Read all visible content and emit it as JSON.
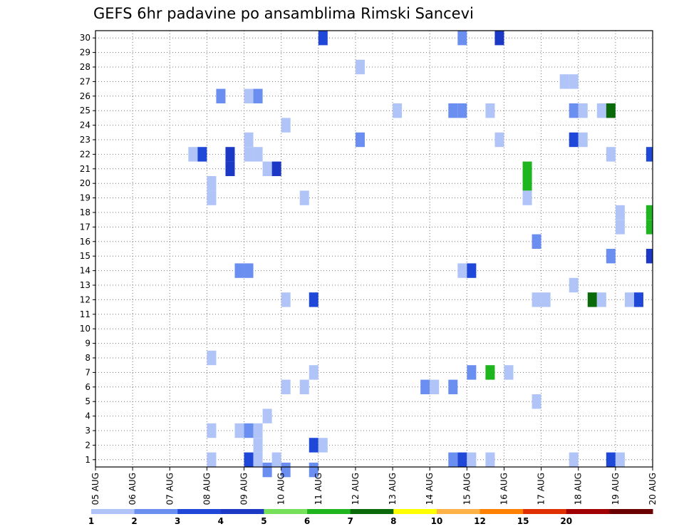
{
  "chart_data": {
    "type": "heatmap",
    "title": "GEFS 6hr padavine po ansamblima Rimski Sancevi",
    "x_labels": [
      "05 AUG",
      "06 AUG",
      "07 AUG",
      "08 AUG",
      "09 AUG",
      "10 AUG",
      "11 AUG",
      "12 AUG",
      "13 AUG",
      "14 AUG",
      "15 AUG",
      "16 AUG",
      "17 AUG",
      "18 AUG",
      "19 AUG",
      "20 AUG"
    ],
    "y_labels": [
      "1",
      "2",
      "3",
      "4",
      "5",
      "6",
      "7",
      "8",
      "9",
      "10",
      "11",
      "12",
      "13",
      "14",
      "15",
      "16",
      "17",
      "18",
      "19",
      "20",
      "21",
      "22",
      "23",
      "24",
      "25",
      "26",
      "27",
      "28",
      "29",
      "30"
    ],
    "x_range": [
      0,
      60
    ],
    "y_range": [
      0.5,
      30.5
    ],
    "grid": true,
    "colorbar": {
      "levels": [
        "1",
        "2",
        "3",
        "4",
        "5",
        "6",
        "7",
        "8",
        "10",
        "12",
        "15",
        "20"
      ],
      "colors": [
        "#b0c4f8",
        "#6b8ff0",
        "#1f48d8",
        "#1c39c6",
        "#76e05a",
        "#1fb51f",
        "#0a6a0a",
        "#ffff00",
        "#ffb347",
        "#ff7f00",
        "#e03000",
        "#a00000",
        "#6a0000"
      ]
    },
    "cells": [
      {
        "t": 24.5,
        "m": 30,
        "c": 3
      },
      {
        "t": 39.5,
        "m": 30,
        "c": 2
      },
      {
        "t": 43.5,
        "m": 30,
        "c": 4
      },
      {
        "t": 28.5,
        "m": 28,
        "c": 1
      },
      {
        "t": 50.5,
        "m": 27,
        "c": 1
      },
      {
        "t": 51.5,
        "m": 27,
        "c": 1
      },
      {
        "t": 13.5,
        "m": 26,
        "c": 2
      },
      {
        "t": 16.5,
        "m": 26,
        "c": 1
      },
      {
        "t": 17.5,
        "m": 26,
        "c": 2
      },
      {
        "t": 32.5,
        "m": 25,
        "c": 1
      },
      {
        "t": 38.5,
        "m": 25,
        "c": 2
      },
      {
        "t": 39.5,
        "m": 25,
        "c": 2
      },
      {
        "t": 42.5,
        "m": 25,
        "c": 1
      },
      {
        "t": 51.5,
        "m": 25,
        "c": 2
      },
      {
        "t": 52.5,
        "m": 25,
        "c": 1
      },
      {
        "t": 54.5,
        "m": 25,
        "c": 1
      },
      {
        "t": 55.5,
        "m": 25,
        "c": 7
      },
      {
        "t": 20.5,
        "m": 24,
        "c": 1
      },
      {
        "t": 16.5,
        "m": 23,
        "c": 1
      },
      {
        "t": 28.5,
        "m": 23,
        "c": 2
      },
      {
        "t": 43.5,
        "m": 23,
        "c": 1
      },
      {
        "t": 51.5,
        "m": 23,
        "c": 3
      },
      {
        "t": 52.5,
        "m": 23,
        "c": 1
      },
      {
        "t": 10.5,
        "m": 22,
        "c": 1
      },
      {
        "t": 11.5,
        "m": 22,
        "c": 3
      },
      {
        "t": 14.5,
        "m": 22,
        "c": 4
      },
      {
        "t": 16.5,
        "m": 22,
        "c": 1
      },
      {
        "t": 17.5,
        "m": 22,
        "c": 1
      },
      {
        "t": 55.5,
        "m": 22,
        "c": 1
      },
      {
        "t": 59.8,
        "m": 22,
        "c": 3
      },
      {
        "t": 14.5,
        "m": 21,
        "c": 4
      },
      {
        "t": 18.5,
        "m": 21,
        "c": 1
      },
      {
        "t": 19.5,
        "m": 21,
        "c": 4
      },
      {
        "t": 46.5,
        "m": 21,
        "c": 6
      },
      {
        "t": 12.5,
        "m": 20,
        "c": 1
      },
      {
        "t": 46.5,
        "m": 20,
        "c": 6
      },
      {
        "t": 12.5,
        "m": 19,
        "c": 1
      },
      {
        "t": 22.5,
        "m": 19,
        "c": 1
      },
      {
        "t": 46.5,
        "m": 19,
        "c": 1
      },
      {
        "t": 56.5,
        "m": 18,
        "c": 1
      },
      {
        "t": 59.8,
        "m": 18,
        "c": 6
      },
      {
        "t": 59.8,
        "m": 17,
        "c": 6
      },
      {
        "t": 56.5,
        "m": 17,
        "c": 1
      },
      {
        "t": 47.5,
        "m": 16,
        "c": 2
      },
      {
        "t": 55.5,
        "m": 15,
        "c": 2
      },
      {
        "t": 59.8,
        "m": 15,
        "c": 4
      },
      {
        "t": 15.5,
        "m": 14,
        "c": 2
      },
      {
        "t": 16.5,
        "m": 14,
        "c": 2
      },
      {
        "t": 39.5,
        "m": 14,
        "c": 1
      },
      {
        "t": 40.5,
        "m": 14,
        "c": 3
      },
      {
        "t": 51.5,
        "m": 13,
        "c": 1
      },
      {
        "t": 20.5,
        "m": 12,
        "c": 1
      },
      {
        "t": 23.5,
        "m": 12,
        "c": 3
      },
      {
        "t": 47.5,
        "m": 12,
        "c": 1
      },
      {
        "t": 48.5,
        "m": 12,
        "c": 1
      },
      {
        "t": 53.5,
        "m": 12,
        "c": 7
      },
      {
        "t": 54.5,
        "m": 12,
        "c": 1
      },
      {
        "t": 57.5,
        "m": 12,
        "c": 1
      },
      {
        "t": 58.5,
        "m": 12,
        "c": 3
      },
      {
        "t": 12.5,
        "m": 8,
        "c": 1
      },
      {
        "t": 23.5,
        "m": 7,
        "c": 1
      },
      {
        "t": 40.5,
        "m": 7,
        "c": 2
      },
      {
        "t": 42.5,
        "m": 7,
        "c": 6
      },
      {
        "t": 44.5,
        "m": 7,
        "c": 1
      },
      {
        "t": 20.5,
        "m": 6,
        "c": 1
      },
      {
        "t": 22.5,
        "m": 6,
        "c": 1
      },
      {
        "t": 35.5,
        "m": 6,
        "c": 2
      },
      {
        "t": 36.5,
        "m": 6,
        "c": 1
      },
      {
        "t": 38.5,
        "m": 6,
        "c": 2
      },
      {
        "t": 47.5,
        "m": 5,
        "c": 1
      },
      {
        "t": 18.5,
        "m": 4,
        "c": 1
      },
      {
        "t": 12.5,
        "m": 3,
        "c": 1
      },
      {
        "t": 15.5,
        "m": 3,
        "c": 1
      },
      {
        "t": 16.5,
        "m": 3,
        "c": 2
      },
      {
        "t": 17.5,
        "m": 3,
        "c": 1
      },
      {
        "t": 17.5,
        "m": 2,
        "c": 1
      },
      {
        "t": 23.5,
        "m": 2,
        "c": 3
      },
      {
        "t": 24.5,
        "m": 2,
        "c": 1
      },
      {
        "t": 12.5,
        "m": 1,
        "c": 1
      },
      {
        "t": 16.5,
        "m": 1,
        "c": 3
      },
      {
        "t": 17.5,
        "m": 1,
        "c": 1
      },
      {
        "t": 19.5,
        "m": 1,
        "c": 1
      },
      {
        "t": 38.5,
        "m": 1,
        "c": 2
      },
      {
        "t": 39.5,
        "m": 1,
        "c": 3
      },
      {
        "t": 40.5,
        "m": 1,
        "c": 1
      },
      {
        "t": 42.5,
        "m": 1,
        "c": 1
      },
      {
        "t": 51.5,
        "m": 1,
        "c": 1
      },
      {
        "t": 55.5,
        "m": 1,
        "c": 3
      },
      {
        "t": 56.5,
        "m": 1,
        "c": 1
      },
      {
        "t": 18.5,
        "m": 0.3,
        "c": 2
      },
      {
        "t": 20.5,
        "m": 0.3,
        "c": 2
      },
      {
        "t": 23.5,
        "m": 0.3,
        "c": 2
      }
    ]
  }
}
